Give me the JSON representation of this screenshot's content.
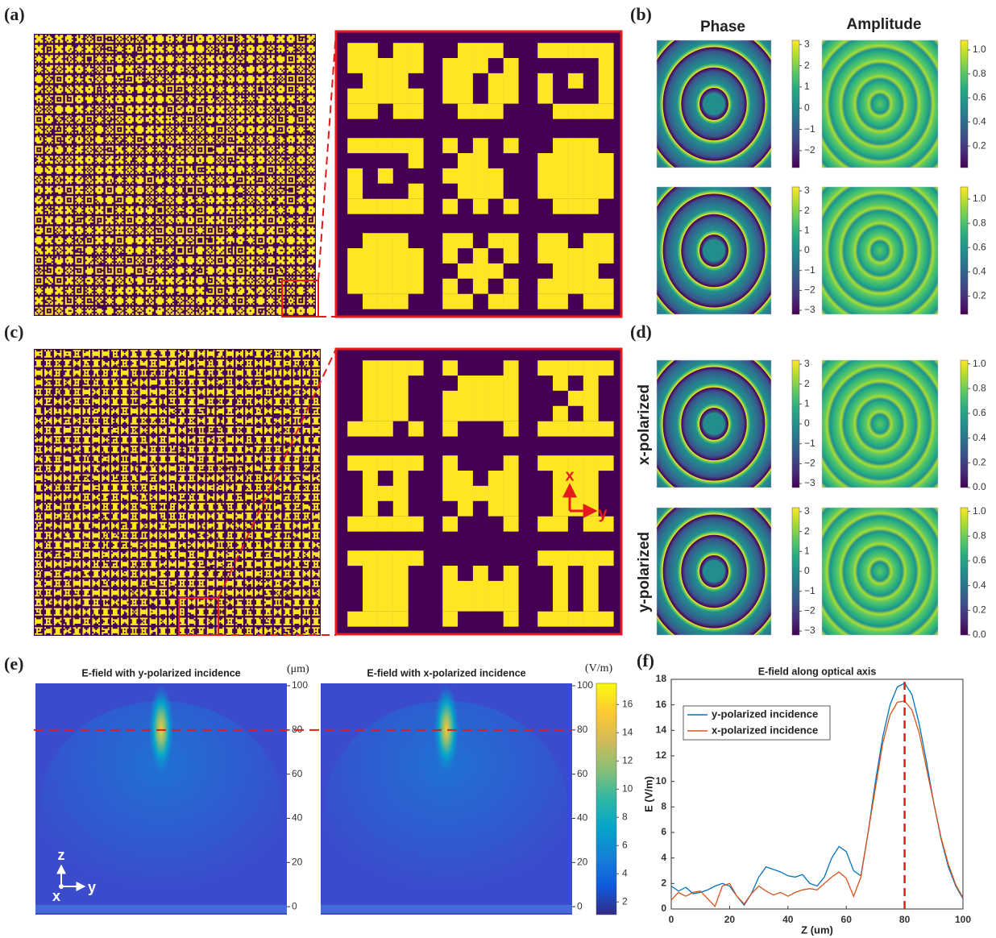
{
  "panels": {
    "a": {
      "label": "(a)"
    },
    "b": {
      "label": "(b)",
      "col_titles": [
        "Phase",
        "Amplitude"
      ],
      "colorbars": [
        {
          "lim": [
            -2.8,
            3.2
          ],
          "ticks": [
            3,
            2,
            1,
            0,
            {
              "value": -1,
              "label": "−1"
            },
            {
              "value": -2,
              "label": "−2"
            }
          ]
        },
        {
          "lim": [
            0.02,
            1.08
          ],
          "ticks": [
            {
              "value": 1,
              "label": "1.0"
            },
            0.8,
            0.6,
            0.4,
            0.2
          ]
        },
        {
          "lim": [
            -3.2,
            3.2
          ],
          "ticks": [
            3,
            2,
            1,
            0,
            {
              "value": -1,
              "label": "−1"
            },
            {
              "value": -2,
              "label": "−2"
            },
            {
              "value": -3,
              "label": "−3"
            }
          ]
        },
        {
          "lim": [
            0.05,
            1.1
          ],
          "ticks": [
            {
              "value": 1,
              "label": "1.0"
            },
            0.8,
            0.6,
            0.4,
            0.2
          ]
        }
      ]
    },
    "c": {
      "label": "(c)",
      "axes": [
        "x",
        "y"
      ]
    },
    "d": {
      "label": "(d)",
      "row_titles": [
        "x-polarized",
        "y-polarized"
      ],
      "colorbars": [
        {
          "lim": [
            -3.2,
            3.2
          ],
          "ticks": [
            3,
            2,
            1,
            0,
            {
              "value": -1,
              "label": "−1"
            },
            {
              "value": -2,
              "label": "−2"
            },
            {
              "value": -3,
              "label": "−3"
            }
          ]
        },
        {
          "lim": [
            0,
            1.03
          ],
          "ticks": [
            {
              "value": 1,
              "label": "1.0"
            },
            0.8,
            0.6,
            0.4,
            0.2,
            {
              "value": 0,
              "label": "0.0"
            }
          ]
        },
        {
          "lim": [
            -3.2,
            3.2
          ],
          "ticks": [
            3,
            2,
            1,
            0,
            {
              "value": -1,
              "label": "−1"
            },
            {
              "value": -2,
              "label": "−2"
            },
            {
              "value": -3,
              "label": "−3"
            }
          ]
        },
        {
          "lim": [
            0,
            1.03
          ],
          "ticks": [
            {
              "value": 1,
              "label": "1.0"
            },
            0.8,
            0.6,
            0.4,
            0.2,
            {
              "value": 0,
              "label": "0.0"
            }
          ]
        }
      ]
    },
    "e": {
      "label": "(e)",
      "titles": [
        "E-field with y-polarized incidence",
        "E-field with x-polarized incidence"
      ],
      "z_unit": "(μm)",
      "zlim": [
        -3.6,
        101.1
      ],
      "zticks": [
        0,
        20,
        40,
        60,
        80,
        100
      ],
      "cbar_unit": "(V/m)",
      "cbar_lim": [
        1.1,
        17.5
      ],
      "cbar_ticks": [
        2,
        4,
        6,
        8,
        10,
        12,
        14,
        16
      ],
      "focus_z": 80,
      "axes": [
        "z",
        "x",
        "y"
      ]
    },
    "f": {
      "label": "(f)"
    }
  },
  "chart_data": {
    "type": "line",
    "title": "E-field along optical axis",
    "xlabel": "Z (um)",
    "ylabel": "E (V/m)",
    "x": [
      0,
      2.5,
      5,
      7.5,
      10,
      12.5,
      15,
      17.5,
      20,
      22.5,
      25,
      27.5,
      30,
      32.5,
      35,
      37.5,
      40,
      42.5,
      45,
      47.5,
      50,
      52.5,
      55,
      57.5,
      60,
      62.5,
      65,
      67.5,
      70,
      72.5,
      75,
      77.5,
      80,
      82.5,
      85,
      87.5,
      90,
      92.5,
      95,
      97.5,
      100
    ],
    "series": [
      {
        "name": "y-polarized incidence",
        "color": "#0072bd",
        "values": [
          1.8,
          1.4,
          1.7,
          1.2,
          1.3,
          1.5,
          1.8,
          2.0,
          1.8,
          1.0,
          0.3,
          1.2,
          2.5,
          3.3,
          3.1,
          2.9,
          2.6,
          2.5,
          2.7,
          2.0,
          1.8,
          2.5,
          4.0,
          4.9,
          4.5,
          3.0,
          2.6,
          6.0,
          10.0,
          13.5,
          16.0,
          17.4,
          17.7,
          16.8,
          14.5,
          11.5,
          8.3,
          5.5,
          3.3,
          1.8,
          0.8
        ]
      },
      {
        "name": "x-polarized incidence",
        "color": "#d95319",
        "values": [
          0.7,
          1.3,
          1.0,
          1.3,
          1.4,
          0.8,
          0.2,
          1.8,
          2.0,
          1.0,
          0.4,
          1.2,
          1.8,
          1.4,
          1.1,
          1.3,
          1.0,
          1.3,
          1.5,
          1.6,
          1.5,
          2.0,
          2.5,
          2.9,
          2.4,
          1.0,
          2.5,
          6.0,
          9.5,
          13.0,
          15.2,
          16.2,
          16.3,
          15.6,
          13.8,
          11.0,
          8.3,
          5.6,
          3.5,
          1.9,
          0.9
        ]
      }
    ],
    "xlim": [
      0,
      100
    ],
    "ylim": [
      0,
      18
    ],
    "xticks": [
      0,
      20,
      40,
      60,
      80,
      100
    ],
    "yticks": [
      0,
      2,
      4,
      6,
      8,
      10,
      12,
      14,
      16,
      18
    ],
    "legend": "upper left",
    "focus_x": 80
  }
}
